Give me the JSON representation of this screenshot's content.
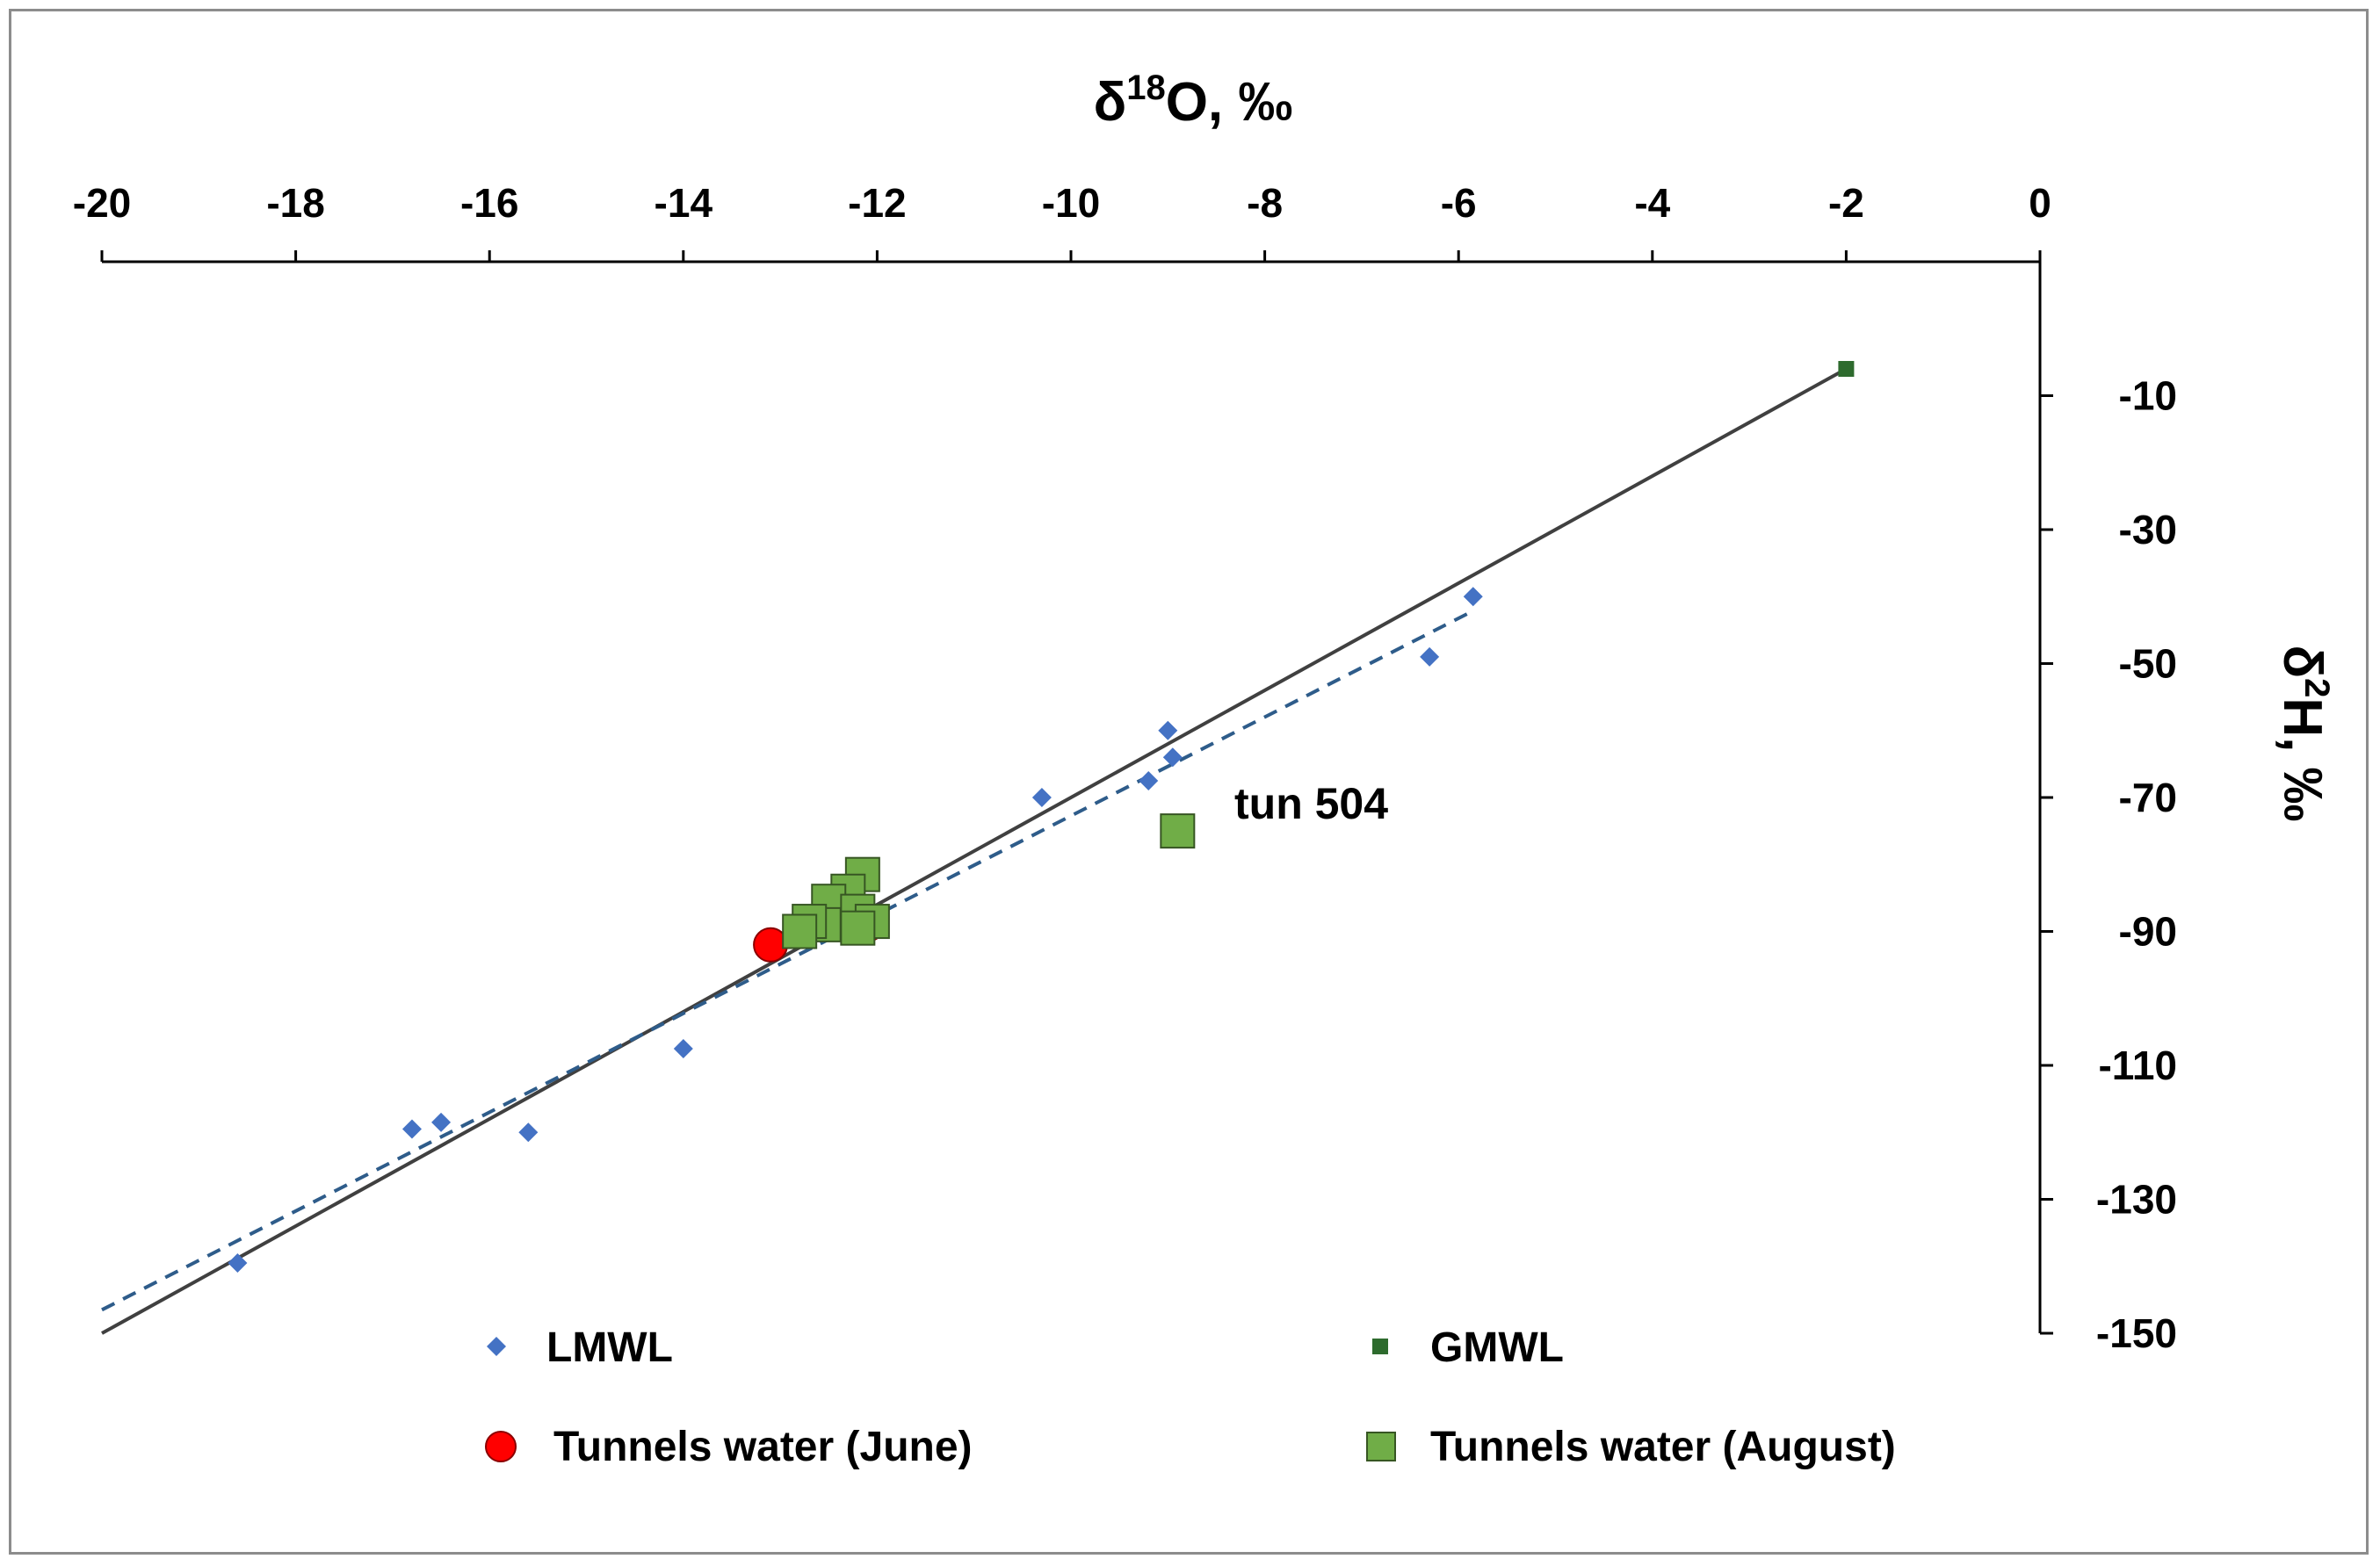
{
  "chart_data": {
    "type": "scatter",
    "x_axis": {
      "title_symbol": "δ",
      "title_sup": "18",
      "title_main": "O,  ‰",
      "range": [
        -20,
        0
      ],
      "ticks": [
        -20,
        -18,
        -16,
        -14,
        -12,
        -10,
        -8,
        -6,
        -4,
        -2,
        0
      ],
      "tick_labels": [
        "-20",
        "-18",
        "-16",
        "-14",
        "-12",
        "-10",
        "-8",
        "-6",
        "-4",
        "-2",
        "0"
      ],
      "position": "top"
    },
    "y_axis": {
      "title_symbol": "δ",
      "title_sup": "2",
      "title_main": "H, ‰",
      "range": [
        -150,
        10
      ],
      "ticks": [
        -10,
        -30,
        -50,
        -70,
        -90,
        -110,
        -130,
        -150
      ],
      "tick_labels": [
        "-10",
        "-30",
        "-50",
        "-70",
        "-90",
        "-110",
        "-130",
        "-150"
      ],
      "position": "right"
    },
    "series": [
      {
        "name": "LMWL",
        "marker": "diamond",
        "color": "#4472c4",
        "points": [
          [
            -18.6,
            -139.5
          ],
          [
            -16.8,
            -119.5
          ],
          [
            -16.5,
            -118.5
          ],
          [
            -15.6,
            -120.0
          ],
          [
            -14.0,
            -107.5
          ],
          [
            -10.3,
            -70.0
          ],
          [
            -9.2,
            -67.5
          ],
          [
            -9.0,
            -60.0
          ],
          [
            -8.95,
            -64.0
          ],
          [
            -6.3,
            -49.0
          ],
          [
            -5.85,
            -40.0
          ]
        ],
        "trendline": {
          "style": "dashed",
          "color": "#2e5c8a",
          "from": [
            -20,
            -146.5
          ],
          "to": [
            -5.9,
            -42.5
          ]
        }
      },
      {
        "name": "GMWL",
        "marker": "square-small",
        "color": "#2e6b2e",
        "points": [
          [
            -2.0,
            -6.0
          ]
        ],
        "line": {
          "style": "solid",
          "color": "#404040",
          "from": [
            -20,
            -150
          ],
          "to": [
            -2,
            -6
          ]
        }
      },
      {
        "name": "Tunnels water (June)",
        "marker": "circle",
        "color": "#ff0000",
        "points": [
          [
            -13.1,
            -92.0
          ],
          [
            -12.35,
            -88.5
          ],
          [
            -12.1,
            -89.0
          ]
        ]
      },
      {
        "name": "Tunnels water (August)",
        "marker": "square",
        "color": "#70ad47",
        "points": [
          [
            -12.15,
            -81.5
          ],
          [
            -12.3,
            -84.0
          ],
          [
            -12.5,
            -85.5
          ],
          [
            -12.2,
            -87.0
          ],
          [
            -12.05,
            -88.5
          ],
          [
            -12.2,
            -89.5
          ],
          [
            -12.55,
            -89.0
          ],
          [
            -12.7,
            -88.5
          ],
          [
            -12.8,
            -90.0
          ],
          [
            -8.9,
            -75.0
          ]
        ]
      }
    ],
    "annotations": [
      {
        "text": "tun 504",
        "x": -8.9,
        "y": -75.0
      }
    ],
    "legend": {
      "placement": "bottom",
      "entries": [
        "LMWL",
        "GMWL",
        "Tunnels water (June)",
        "Tunnels water (August)"
      ]
    }
  }
}
